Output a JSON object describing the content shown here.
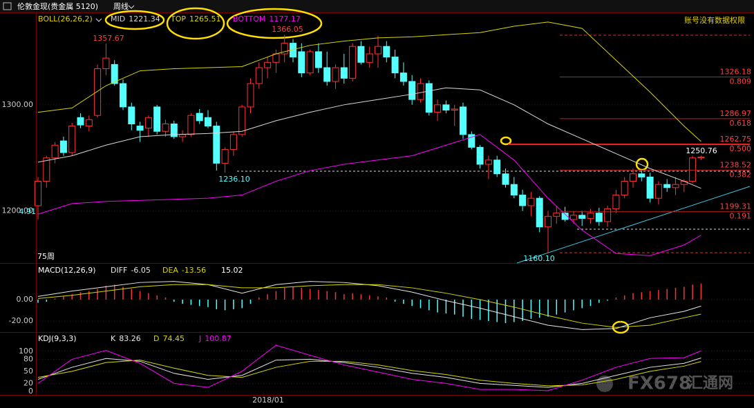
{
  "header": {
    "title": "伦敦金现(贵金属 5120)",
    "period": "周线",
    "notice": "账号没有数据权限"
  },
  "watermark": [
    "FX678",
    "汇通网"
  ],
  "chart_data": [
    {
      "type": "candlestick",
      "indicator": "BOLL(26,26,2)",
      "up_color": "#ff3232",
      "down_color": "#54ffff",
      "ylim": [
        1151,
        1387
      ],
      "yticks": [
        {
          "value": 1200,
          "label": "1200.00"
        },
        {
          "value": 1300,
          "label": "1300.00"
        }
      ],
      "ohlc": [
        [
          1205,
          1232,
          1192,
          1228
        ],
        [
          1228,
          1252,
          1222,
          1250
        ],
        [
          1250,
          1265,
          1245,
          1262
        ],
        [
          1266,
          1270,
          1252,
          1255
        ],
        [
          1255,
          1283,
          1252,
          1280
        ],
        [
          1288,
          1292,
          1278,
          1281
        ],
        [
          1280,
          1290,
          1275,
          1286
        ],
        [
          1290,
          1338,
          1288,
          1334
        ],
        [
          1334,
          1357.67,
          1328,
          1344
        ],
        [
          1338,
          1342,
          1318,
          1320
        ],
        [
          1320,
          1324,
          1295,
          1298
        ],
        [
          1298,
          1302,
          1276,
          1282
        ],
        [
          1280,
          1284,
          1265,
          1276
        ],
        [
          1278,
          1290,
          1270,
          1288
        ],
        [
          1298,
          1300,
          1272,
          1275
        ],
        [
          1275,
          1286,
          1270,
          1282
        ],
        [
          1282,
          1285,
          1268,
          1270
        ],
        [
          1270,
          1276,
          1265,
          1272
        ],
        [
          1272,
          1292,
          1270,
          1290
        ],
        [
          1292,
          1296,
          1282,
          1285
        ],
        [
          1288,
          1295,
          1278,
          1280
        ],
        [
          1280,
          1284,
          1238,
          1245
        ],
        [
          1245,
          1260,
          1236.1,
          1258
        ],
        [
          1258,
          1275,
          1252,
          1272
        ],
        [
          1272,
          1300,
          1270,
          1298
        ],
        [
          1298,
          1325,
          1292,
          1320
        ],
        [
          1320,
          1340,
          1315,
          1335
        ],
        [
          1335,
          1345,
          1325,
          1340
        ],
        [
          1340,
          1352,
          1330,
          1348
        ],
        [
          1348,
          1366.05,
          1340,
          1358
        ],
        [
          1358,
          1362,
          1340,
          1345
        ],
        [
          1350,
          1358,
          1326,
          1330
        ],
        [
          1330,
          1352,
          1328,
          1350
        ],
        [
          1350,
          1358,
          1330,
          1335
        ],
        [
          1335,
          1350,
          1318,
          1322
        ],
        [
          1322,
          1338,
          1315,
          1335
        ],
        [
          1335,
          1348,
          1320,
          1325
        ],
        [
          1325,
          1358,
          1322,
          1355
        ],
        [
          1355,
          1360,
          1338,
          1340
        ],
        [
          1340,
          1355,
          1335,
          1348
        ],
        [
          1348,
          1365,
          1335,
          1355
        ],
        [
          1355,
          1360,
          1340,
          1345
        ],
        [
          1345,
          1352,
          1325,
          1330
        ],
        [
          1330,
          1340,
          1318,
          1322
        ],
        [
          1322,
          1328,
          1300,
          1305
        ],
        [
          1305,
          1325,
          1302,
          1320
        ],
        [
          1320,
          1323,
          1290,
          1293
        ],
        [
          1293,
          1305,
          1285,
          1300
        ],
        [
          1300,
          1304,
          1292,
          1295
        ],
        [
          1295,
          1300,
          1280,
          1296
        ],
        [
          1298,
          1302,
          1268,
          1272
        ],
        [
          1272,
          1275,
          1258,
          1260
        ],
        [
          1260,
          1262,
          1240,
          1244
        ],
        [
          1244,
          1252,
          1230,
          1248
        ],
        [
          1248,
          1252,
          1232,
          1235
        ],
        [
          1235,
          1240,
          1222,
          1225
        ],
        [
          1225,
          1232,
          1212,
          1215
        ],
        [
          1215,
          1220,
          1200,
          1205
        ],
        [
          1205,
          1218,
          1195,
          1212
        ],
        [
          1212,
          1214,
          1180,
          1185
        ],
        [
          1185,
          1200,
          1160.1,
          1195
        ],
        [
          1195,
          1205,
          1188,
          1198
        ],
        [
          1198,
          1204,
          1190,
          1192
        ],
        [
          1192,
          1200,
          1188,
          1196
        ],
        [
          1196,
          1200,
          1186,
          1193
        ],
        [
          1193,
          1202,
          1188,
          1198
        ],
        [
          1198,
          1203,
          1186,
          1190
        ],
        [
          1190,
          1205,
          1185,
          1202
        ],
        [
          1202,
          1220,
          1198,
          1215
        ],
        [
          1215,
          1232,
          1212,
          1228
        ],
        [
          1228,
          1240,
          1222,
          1235
        ],
        [
          1235,
          1238,
          1228,
          1232
        ],
        [
          1232,
          1236,
          1208,
          1212
        ],
        [
          1212,
          1228,
          1206,
          1225
        ],
        [
          1225,
          1230,
          1218,
          1222
        ],
        [
          1222,
          1232,
          1215,
          1225
        ],
        [
          1225,
          1230,
          1218,
          1228
        ],
        [
          1228,
          1252,
          1226,
          1250
        ],
        [
          1250,
          1252,
          1248,
          1250.76
        ]
      ],
      "series": [
        {
          "name": "MID",
          "color": "#d8d8d8",
          "x": [
            0,
            4,
            8,
            12,
            16,
            20,
            24,
            28,
            32,
            36,
            40,
            44,
            48,
            52,
            56,
            60,
            64,
            68,
            72,
            76,
            78
          ],
          "values": [
            1246,
            1252,
            1262,
            1270,
            1272,
            1273,
            1275,
            1285,
            1293,
            1300,
            1305,
            1310,
            1316,
            1314,
            1300,
            1282,
            1268,
            1254,
            1240,
            1228,
            1221.34
          ]
        },
        {
          "name": "TOP",
          "color": "#d8d800",
          "x": [
            0,
            4,
            8,
            12,
            16,
            20,
            24,
            28,
            32,
            36,
            40,
            44,
            48,
            52,
            56,
            60,
            64,
            68,
            72,
            76,
            78
          ],
          "values": [
            1293,
            1297,
            1318,
            1332,
            1334,
            1335,
            1336,
            1348,
            1356,
            1360,
            1363,
            1364,
            1366,
            1368,
            1374,
            1378,
            1372,
            1342,
            1312,
            1280,
            1265.51
          ]
        },
        {
          "name": "BOTTOM",
          "color": "#ff00ff",
          "x": [
            0,
            4,
            8,
            12,
            16,
            20,
            24,
            28,
            32,
            36,
            40,
            44,
            48,
            52,
            56,
            60,
            64,
            68,
            72,
            76,
            78
          ],
          "values": [
            1197,
            1207,
            1209,
            1210,
            1211,
            1212,
            1215,
            1228,
            1238,
            1244,
            1248,
            1252,
            1262,
            1272,
            1248,
            1212,
            1182,
            1160,
            1158,
            1168,
            1177.17
          ]
        }
      ],
      "fib_levels": [
        {
          "value": 1326.18,
          "ratio": "0.809"
        },
        {
          "value": 1286.97,
          "ratio": "0.618"
        },
        {
          "value": 1262.75,
          "ratio": "0.500"
        },
        {
          "value": 1238.52,
          "ratio": "0.382"
        },
        {
          "value": 1199.31,
          "ratio": "0.191"
        }
      ],
      "annotations": [
        1357.67,
        1366.05,
        {
          "value": 1236.1,
          "label": "1236.10"
        },
        {
          "value": 1160.1,
          "label": "1160.10"
        },
        1250.76
      ],
      "left_label": "4.91",
      "corner_label": "75周",
      "x_label": "2018/01"
    },
    {
      "type": "macd",
      "indicator": "MACD(12,26,9)",
      "up_color": "#ff3232",
      "down_color": "#54ffff",
      "ylim": [
        -29.7,
        32.9
      ],
      "yticks": [
        {
          "value": -20,
          "label": "-20.00"
        },
        {
          "value": 0,
          "label": "0.00"
        }
      ],
      "histogram": [
        -3,
        -2,
        1,
        3,
        5,
        7,
        8,
        10,
        13,
        14,
        12,
        10,
        8,
        6,
        4,
        2,
        -2,
        -4,
        -5,
        -6,
        -7,
        -9,
        -10,
        -9,
        -8,
        -4,
        2,
        5,
        8,
        11,
        12,
        11,
        10,
        9,
        8,
        7,
        5,
        6,
        5,
        4,
        3,
        2,
        -2,
        -4,
        -6,
        -8,
        -10,
        -12,
        -13,
        -14,
        -16,
        -18,
        -19,
        -20,
        -21,
        -22,
        -21,
        -20,
        -18,
        -17,
        -16,
        -14,
        -12,
        -10,
        -8,
        -6,
        -3,
        -1,
        2,
        4,
        6,
        7,
        8,
        9,
        10,
        11,
        12,
        14,
        15.02
      ],
      "series": [
        {
          "name": "DIFF",
          "color": "#e8e8e8",
          "x": [
            0,
            4,
            8,
            12,
            16,
            20,
            24,
            28,
            32,
            36,
            40,
            44,
            48,
            52,
            56,
            60,
            64,
            68,
            72,
            76,
            78
          ],
          "values": [
            3,
            8,
            12,
            16,
            17,
            14,
            6,
            14,
            17,
            16,
            13,
            7,
            -1,
            -8,
            -16,
            -24,
            -28,
            -27,
            -17,
            -11,
            -6.05
          ]
        },
        {
          "name": "DEA",
          "color": "#d8d800",
          "x": [
            0,
            4,
            8,
            12,
            16,
            20,
            24,
            28,
            32,
            36,
            40,
            44,
            48,
            52,
            56,
            60,
            64,
            68,
            72,
            76,
            78
          ],
          "values": [
            1,
            4,
            8,
            12,
            14,
            14,
            11,
            11,
            13,
            14,
            14,
            11,
            6,
            0,
            -7,
            -15,
            -22,
            -26,
            -24,
            -17,
            -13.56
          ]
        }
      ]
    },
    {
      "type": "line",
      "indicator": "KDJ(9,3,3)",
      "ylim": [
        -8.6,
        146
      ],
      "yticks": [
        0,
        20,
        50,
        80,
        100
      ],
      "series": [
        {
          "name": "K",
          "color": "#e8e8e8",
          "x": [
            0,
            4,
            8,
            12,
            16,
            20,
            24,
            28,
            32,
            36,
            40,
            44,
            48,
            52,
            56,
            60,
            64,
            68,
            72,
            76,
            78
          ],
          "values": [
            30,
            60,
            82,
            75,
            45,
            30,
            40,
            78,
            80,
            72,
            60,
            45,
            35,
            20,
            15,
            10,
            20,
            40,
            60,
            70,
            83.26
          ]
        },
        {
          "name": "D",
          "color": "#d8d800",
          "x": [
            0,
            4,
            8,
            12,
            16,
            20,
            24,
            28,
            32,
            36,
            40,
            44,
            48,
            52,
            56,
            60,
            64,
            68,
            72,
            76,
            78
          ],
          "values": [
            35,
            50,
            72,
            78,
            58,
            40,
            35,
            60,
            75,
            75,
            66,
            52,
            42,
            28,
            20,
            14,
            16,
            30,
            50,
            63,
            74.45
          ]
        },
        {
          "name": "J",
          "color": "#ff00ff",
          "x": [
            0,
            4,
            8,
            12,
            16,
            20,
            24,
            28,
            32,
            36,
            40,
            44,
            48,
            52,
            56,
            60,
            64,
            68,
            72,
            76,
            78
          ],
          "values": [
            20,
            80,
            102,
            70,
            20,
            10,
            50,
            115,
            90,
            66,
            48,
            30,
            20,
            5,
            5,
            2,
            28,
            60,
            82,
            84,
            100.87
          ]
        }
      ]
    }
  ]
}
